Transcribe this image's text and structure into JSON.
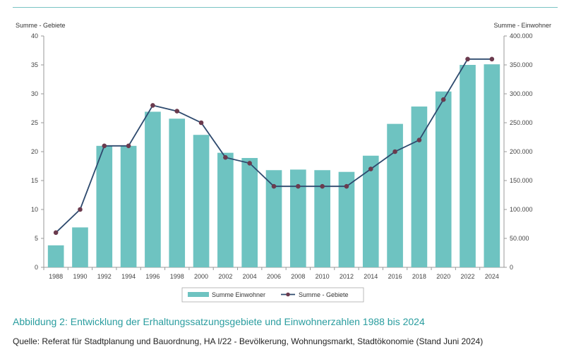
{
  "caption": "Abbildung 2: Entwicklung der Erhaltungssatzungsgebiete und Einwohnerzahlen 1988 bis 2024",
  "source": "Quelle: Referat für Stadtplanung und Bauordnung, HA I/22 - Bevölkerung, Wohnungsmarkt, Stadtökonomie (Stand Juni 2024)",
  "colors": {
    "bars": "#6ec3c1",
    "line": "#2e4a6e",
    "marker": "#6b3b4e",
    "accent": "#2a9d9f"
  },
  "chart_data": {
    "type": "bar+line",
    "categories": [
      "1988",
      "1990",
      "1992",
      "1994",
      "1996",
      "1998",
      "2000",
      "2002",
      "2004",
      "2006",
      "2008",
      "2010",
      "2012",
      "2014",
      "2016",
      "2018",
      "2020",
      "2022",
      "2024"
    ],
    "left_axis": {
      "label": "Summe - Gebiete",
      "ylim": [
        0,
        40
      ],
      "ticks": [
        "0",
        "5",
        "10",
        "15",
        "20",
        "25",
        "30",
        "35",
        "40"
      ]
    },
    "right_axis": {
      "label": "Summe - Einwohner",
      "ylim": [
        0,
        400000
      ],
      "ticks": [
        "0",
        "50.000",
        "100.000",
        "150.000",
        "200.000",
        "250.000",
        "300.000",
        "350.000",
        "400.000"
      ]
    },
    "series": [
      {
        "name": "Summe Einwohner",
        "kind": "bar",
        "axis": "right",
        "values": [
          38000,
          69000,
          210000,
          210000,
          269000,
          257000,
          229000,
          198000,
          189000,
          168000,
          169000,
          168000,
          165000,
          193000,
          248000,
          278000,
          304000,
          350000,
          351000
        ]
      },
      {
        "name": "Summe - Gebiete",
        "kind": "line",
        "axis": "left",
        "values": [
          6,
          10,
          21,
          21,
          28,
          27,
          25,
          19,
          18,
          14,
          14,
          14,
          14,
          17,
          20,
          22,
          29,
          36,
          36
        ]
      }
    ],
    "grid": false,
    "legend_position": "bottom-center"
  }
}
